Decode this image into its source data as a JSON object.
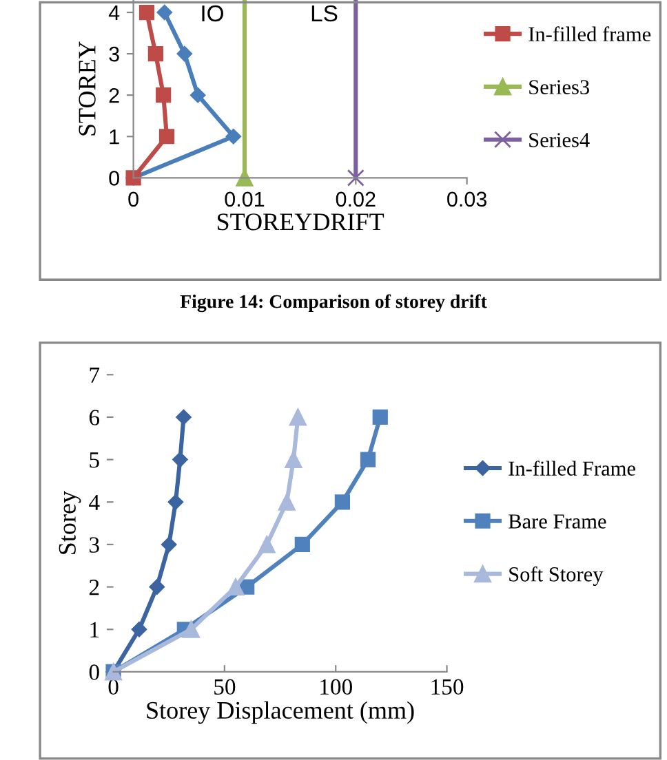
{
  "chart_data": [
    {
      "type": "line",
      "xlabel": "STOREYDRIFT",
      "ylabel": "STOREY",
      "xlim": [
        0,
        0.03
      ],
      "xticks": [
        {
          "value": 0,
          "label": "0"
        },
        0.01,
        0.02,
        0.03
      ],
      "ylim": [
        0,
        4.3
      ],
      "yticks": [
        0,
        1,
        2,
        3,
        4
      ],
      "grid": false,
      "legend": "right",
      "line_style": "solid",
      "series": [
        {
          "color": "#4a7ebb",
          "marker": "diamond",
          "x": [
            0,
            0.009,
            0.0058,
            0.0046,
            0.0028
          ],
          "values": [
            0,
            1,
            2,
            3,
            4
          ]
        },
        {
          "name": "In-filled frame",
          "color": "#be4b48",
          "marker": "square",
          "x": [
            0,
            0.003,
            0.0027,
            0.002,
            0.0012
          ],
          "values": [
            0,
            1,
            2,
            3,
            4
          ]
        },
        {
          "name": "Series3",
          "color": "#98b954",
          "marker": "triangle",
          "x": [
            0.01,
            0.01
          ],
          "values": [
            0,
            4.3
          ]
        },
        {
          "name": "Series4",
          "color": "#7d60a0",
          "marker": "cross",
          "x": [
            0.02,
            0.02
          ],
          "values": [
            0,
            4.3
          ]
        }
      ],
      "annotations": [
        "IO",
        "LS",
        "Figure 14: Comparison of storey drift"
      ]
    },
    {
      "type": "line",
      "xlabel": "Storey Displacement (mm)",
      "ylabel": "Storey",
      "xlim": [
        0,
        150
      ],
      "xticks": [
        0,
        50,
        100,
        150
      ],
      "ylim": [
        0,
        7
      ],
      "yticks": [
        0,
        1,
        2,
        3,
        4,
        5,
        6,
        7
      ],
      "grid": false,
      "legend": "right",
      "line_style": "solid",
      "series": [
        {
          "name": "In-filled Frame",
          "color": "#3b64a0",
          "marker": "diamond",
          "x": [
            0,
            11.6,
            19.6,
            25,
            28,
            30,
            31.6
          ],
          "values": [
            0,
            1,
            2,
            3,
            4,
            5,
            6
          ]
        },
        {
          "name": "Bare Frame",
          "color": "#4f81bd",
          "marker": "square",
          "x": [
            0,
            32,
            60,
            85,
            103,
            114.5,
            120
          ],
          "values": [
            0,
            1,
            2,
            3,
            4,
            5,
            6
          ]
        },
        {
          "name": "Soft Storey",
          "color": "#a9b9dc",
          "marker": "triangle",
          "x": [
            0,
            35,
            55,
            69,
            78,
            81,
            83
          ],
          "values": [
            0,
            1,
            2,
            3,
            4,
            5,
            6
          ]
        }
      ]
    }
  ]
}
